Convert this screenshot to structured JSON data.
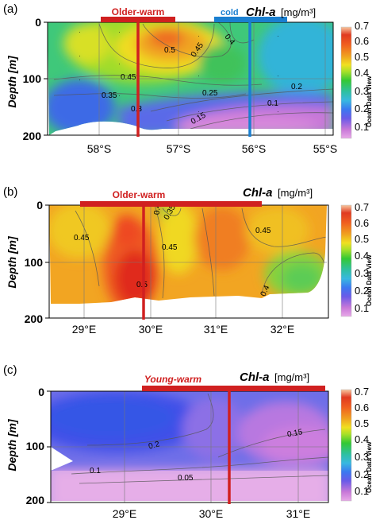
{
  "colorbar": {
    "ticks": [
      "0.7",
      "0.6",
      "0.5",
      "0.4",
      "0.3",
      "0.2",
      "0.1"
    ],
    "side_label": "Ocean Data View",
    "stops": [
      "#e8a8e8",
      "#c878d8",
      "#6a5ae8",
      "#3b78f0",
      "#38b8e0",
      "#2ec0a0",
      "#34c834",
      "#a8e028",
      "#f0e020",
      "#f0a020",
      "#f06020",
      "#e03a20",
      "#f8c8a0"
    ]
  },
  "panels": [
    {
      "id": "a",
      "label": "(a)",
      "ylabel": "Depth [m]",
      "yticks": [
        "0",
        "100",
        "200"
      ],
      "xticks": [
        "58°S",
        "57°S",
        "56°S",
        "55°S"
      ],
      "chl_title": "Chl-a",
      "chl_unit": "[mg/m³]",
      "band_labels": [
        {
          "text": "Older-warm",
          "color": "#d02020"
        },
        {
          "text": "cold",
          "color": "#1a7fd0"
        }
      ],
      "contour_labels": [
        "0.5",
        "0.45",
        "0.4",
        "0.45",
        "0.35",
        "0.3",
        "0.25",
        "0.2",
        "0.15",
        "0.1"
      ]
    },
    {
      "id": "b",
      "label": "(b)",
      "ylabel": "Depth [m]",
      "yticks": [
        "0",
        "100",
        "200"
      ],
      "xticks": [
        "29°E",
        "30°E",
        "31°E",
        "32°E"
      ],
      "chl_title": "Chl-a",
      "chl_unit": "[mg/m³]",
      "band_labels": [
        {
          "text": "Older-warm",
          "color": "#d02020"
        }
      ],
      "contour_labels": [
        "0.45",
        "0.4",
        "0.35",
        "0.45",
        "0.45",
        "0.4",
        "0.5"
      ]
    },
    {
      "id": "c",
      "label": "(c)",
      "ylabel": "Depth [m]",
      "yticks": [
        "0",
        "100",
        "200"
      ],
      "xticks": [
        "29°E",
        "30°E",
        "31°E"
      ],
      "chl_title": "Chl-a",
      "chl_unit": "[mg/m³]",
      "band_labels": [
        {
          "text": "Young-warm",
          "color": "#d02020"
        }
      ],
      "contour_labels": [
        "0.2",
        "0.15",
        "0.1",
        "0.05"
      ]
    }
  ],
  "chart_data": [
    {
      "type": "heatmap",
      "panel": "(a)",
      "variable": "Chl-a",
      "units": "mg/m³",
      "ylabel": "Depth [m]",
      "xlabel": "",
      "ylim": [
        200,
        0
      ],
      "xlim": [
        "58.6°S",
        "54.8°S"
      ],
      "x_ticks": [
        "58°S",
        "57°S",
        "56°S",
        "55°S"
      ],
      "y_ticks": [
        0,
        100,
        200
      ],
      "colorbar_range": [
        0.05,
        0.7
      ],
      "colorbar_ticks": [
        0.1,
        0.2,
        0.3,
        0.4,
        0.5,
        0.6,
        0.7
      ],
      "contour_levels": [
        0.1,
        0.15,
        0.2,
        0.25,
        0.3,
        0.35,
        0.4,
        0.45,
        0.5
      ],
      "bands": [
        {
          "label": "Older-warm",
          "from": "58.0°S",
          "to": "56.6°S",
          "color": "#d02020"
        },
        {
          "label": "cold",
          "from": "56.4°S",
          "to": "55.5°S",
          "color": "#1a7fd0"
        }
      ],
      "section_marks": [
        {
          "x": "57.5°S",
          "color": "#d02020"
        },
        {
          "x": "56.0°S",
          "color": "#1a7fd0"
        }
      ]
    },
    {
      "type": "heatmap",
      "panel": "(b)",
      "variable": "Chl-a",
      "units": "mg/m³",
      "ylabel": "Depth [m]",
      "xlabel": "",
      "ylim": [
        200,
        0
      ],
      "xlim": [
        "28.2°E",
        "32.2°E"
      ],
      "x_ticks": [
        "29°E",
        "30°E",
        "31°E",
        "32°E"
      ],
      "y_ticks": [
        0,
        100,
        200
      ],
      "colorbar_range": [
        0.05,
        0.7
      ],
      "colorbar_ticks": [
        0.1,
        0.2,
        0.3,
        0.4,
        0.5,
        0.6,
        0.7
      ],
      "contour_levels": [
        0.35,
        0.4,
        0.45,
        0.5
      ],
      "bands": [
        {
          "label": "Older-warm",
          "from": "28.6°E",
          "to": "31.2°E",
          "color": "#d02020"
        }
      ],
      "section_marks": [
        {
          "x": "29.5°E",
          "color": "#d02020"
        }
      ]
    },
    {
      "type": "heatmap",
      "panel": "(c)",
      "variable": "Chl-a",
      "units": "mg/m³",
      "ylabel": "Depth [m]",
      "xlabel": "",
      "ylim": [
        200,
        0
      ],
      "xlim": [
        "28.3°E",
        "31.5°E"
      ],
      "x_ticks": [
        "29°E",
        "30°E",
        "31°E"
      ],
      "y_ticks": [
        0,
        100,
        200
      ],
      "colorbar_range": [
        0.05,
        0.7
      ],
      "colorbar_ticks": [
        0.1,
        0.2,
        0.3,
        0.4,
        0.5,
        0.6,
        0.7
      ],
      "contour_levels": [
        0.05,
        0.1,
        0.15,
        0.2
      ],
      "bands": [
        {
          "label": "Young-warm",
          "from": "29.3°E",
          "to": "31.5°E",
          "color": "#d02020"
        }
      ],
      "section_marks": [
        {
          "x": "30.2°E",
          "color": "#d02020"
        }
      ]
    }
  ]
}
